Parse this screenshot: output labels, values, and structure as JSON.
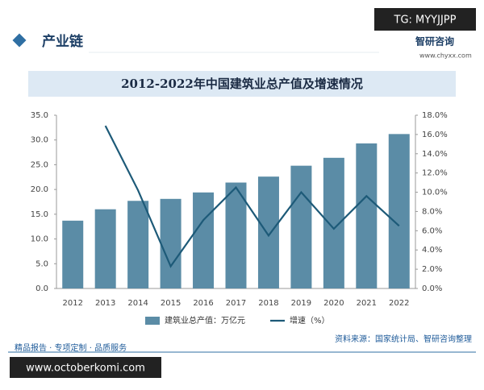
{
  "header": {
    "title": "产业链",
    "logo": "智研咨询",
    "url": "www.chyxx.com"
  },
  "overlay_top": "TG: MYYJJPP",
  "chart_data": {
    "type": "bar-line",
    "title": "2012-2022年中国建筑业总产值及增速情况",
    "categories": [
      "2012",
      "2013",
      "2014",
      "2015",
      "2016",
      "2017",
      "2018",
      "2019",
      "2020",
      "2021",
      "2022"
    ],
    "series": [
      {
        "name": "建筑业总产值：万亿元",
        "color": "#5b8ca6",
        "type": "bar",
        "values": [
          13.7,
          16.0,
          17.7,
          18.1,
          19.4,
          21.4,
          22.6,
          24.8,
          26.4,
          29.3,
          31.2
        ]
      },
      {
        "name": "增速（%）",
        "color": "#1d5a78",
        "type": "line",
        "axis": "y2",
        "values": [
          null,
          16.9,
          10.2,
          2.3,
          7.1,
          10.5,
          5.5,
          10.0,
          6.2,
          9.6,
          6.5
        ]
      }
    ],
    "ylim": [
      0,
      35
    ],
    "yticks": [
      {
        "value": 0,
        "label": "0.0"
      },
      {
        "value": 5,
        "label": "5.0"
      },
      {
        "value": 10,
        "label": "10.0"
      },
      {
        "value": 15,
        "label": "15.0"
      },
      {
        "value": 20,
        "label": "20.0"
      },
      {
        "value": 25,
        "label": "25.0"
      },
      {
        "value": 30,
        "label": "30.0"
      },
      {
        "value": 35,
        "label": "35.0"
      }
    ],
    "y2lim": [
      0,
      18
    ],
    "y2ticks": [
      {
        "value": 0,
        "label": "0.0%"
      },
      {
        "value": 2,
        "label": "2.0%"
      },
      {
        "value": 4,
        "label": "4.0%"
      },
      {
        "value": 6,
        "label": "6.0%"
      },
      {
        "value": 8,
        "label": "8.0%"
      },
      {
        "value": 10,
        "label": "10.0%"
      },
      {
        "value": 12,
        "label": "12.0%"
      },
      {
        "value": 14,
        "label": "14.0%"
      },
      {
        "value": 16,
        "label": "16.0%"
      },
      {
        "value": 18,
        "label": "18.0%"
      }
    ],
    "legend": "bottom",
    "source": "资料来源：国家统计局、智研咨询整理"
  },
  "footer": "精品报告 · 专项定制 · 品质服务",
  "overlay_bottom": "www.octoberkomi.com"
}
